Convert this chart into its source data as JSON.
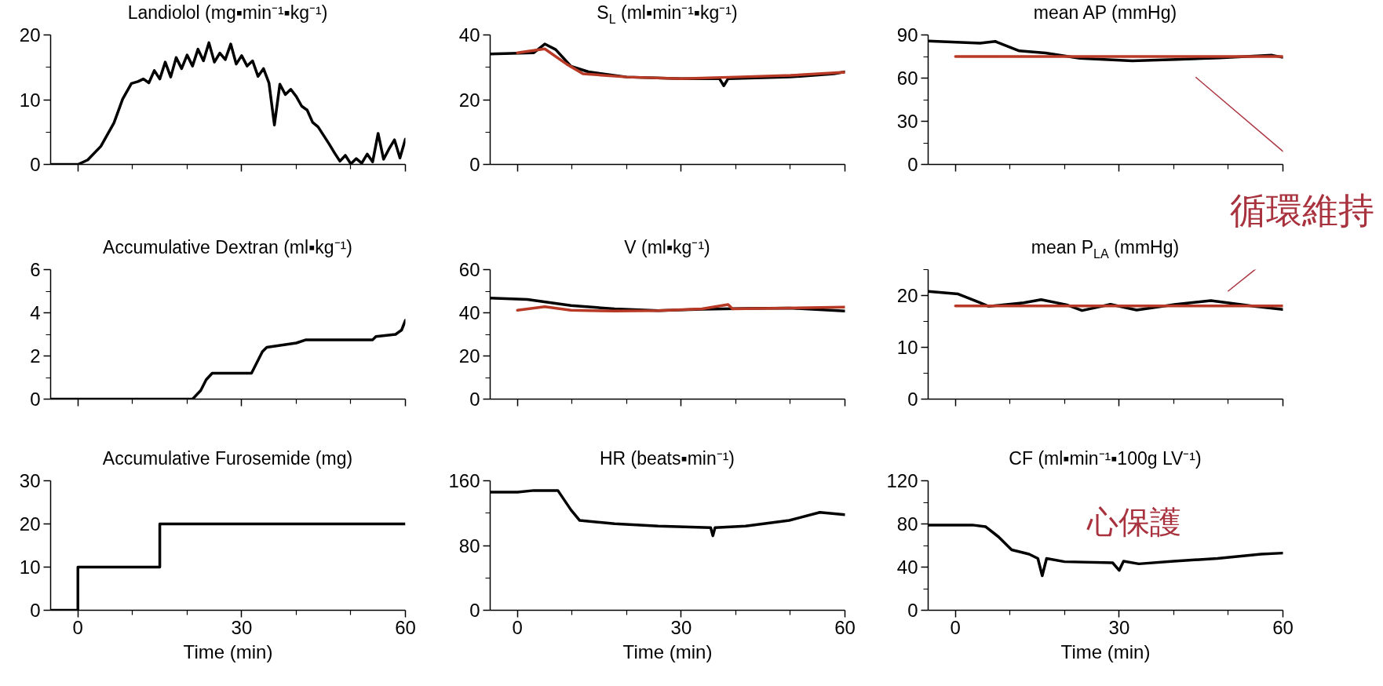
{
  "chart_data": [
    {
      "type": "line",
      "title": "Landiolol (mg▪min⁻¹▪kg⁻¹)",
      "xlim": [
        -5,
        60
      ],
      "xticks": [
        0,
        {
          "value": 10,
          "label": null
        },
        {
          "value": 20,
          "label": null
        },
        30,
        {
          "value": 40,
          "label": null
        },
        {
          "value": 50,
          "label": null
        },
        60
      ],
      "ylim": [
        0,
        20
      ],
      "yticks": [
        0,
        {
          "value": 5,
          "label": null
        },
        10,
        {
          "value": 15,
          "label": null
        },
        20
      ],
      "tick_labels": "y",
      "series": [
        {
          "color": "#000000",
          "x": [
            -5,
            0,
            1.8,
            4.2,
            6.6,
            8.2,
            9.8,
            11,
            12,
            13,
            14,
            15,
            16,
            17,
            18,
            19,
            20,
            21,
            22,
            23,
            24,
            25,
            26,
            27,
            28,
            29,
            30,
            31,
            32,
            33,
            34,
            35,
            36,
            37,
            38,
            39,
            40,
            41,
            42,
            43,
            44,
            45,
            46,
            47,
            48,
            49,
            50,
            51,
            52,
            53,
            54,
            55,
            56,
            57,
            58,
            59,
            60
          ],
          "values": [
            0,
            0,
            0.7,
            2.8,
            6.4,
            10.1,
            12.5,
            12.8,
            13.2,
            12.6,
            14.5,
            13.2,
            15.8,
            13.5,
            16.5,
            14.8,
            16.9,
            15.2,
            17.8,
            16.0,
            18.8,
            15.8,
            17.2,
            16.2,
            18.6,
            15.5,
            16.8,
            15.2,
            16.0,
            13.6,
            14.8,
            12.6,
            6.1,
            12.4,
            10.8,
            11.6,
            10.5,
            9.0,
            8.4,
            6.5,
            5.8,
            4.5,
            3.2,
            1.8,
            0.5,
            1.4,
            0.1,
            0.9,
            0.2,
            1.6,
            0.4,
            4.8,
            0.8,
            2.4,
            3.8,
            1.0,
            3.9
          ]
        }
      ]
    },
    {
      "type": "line",
      "title": "S$_{L}$ (ml▪min⁻¹▪kg⁻¹)",
      "xlim": [
        -5,
        60
      ],
      "xticks": [
        0,
        {
          "value": 10,
          "label": null
        },
        {
          "value": 20,
          "label": null
        },
        30,
        {
          "value": 40,
          "label": null
        },
        {
          "value": 50,
          "label": null
        },
        60
      ],
      "ylim": [
        0,
        40
      ],
      "yticks": [
        0,
        {
          "value": 10,
          "label": null
        },
        20,
        {
          "value": 30,
          "label": null
        },
        40
      ],
      "tick_labels": "y",
      "series": [
        {
          "color": "#000000",
          "x": [
            -5,
            3,
            5,
            7,
            9.8,
            13,
            20,
            30,
            37,
            37.8,
            38.6,
            45,
            50,
            58,
            60
          ],
          "values": [
            34.1,
            34.5,
            37.2,
            35.5,
            30.3,
            28.6,
            27,
            26.5,
            26.5,
            24.3,
            26.5,
            26.8,
            27,
            28,
            28.6
          ]
        },
        {
          "color": "#b83a26",
          "x": [
            0,
            5,
            9,
            12,
            20,
            30,
            40,
            50,
            60
          ],
          "values": [
            34.5,
            35.7,
            31,
            28,
            27,
            26.5,
            27,
            27.5,
            28.5
          ]
        }
      ]
    },
    {
      "type": "line",
      "title": "mean AP (mmHg)",
      "xlim": [
        -5,
        60
      ],
      "xticks": [
        0,
        {
          "value": 10,
          "label": null
        },
        {
          "value": 20,
          "label": null
        },
        30,
        {
          "value": 40,
          "label": null
        },
        {
          "value": 50,
          "label": null
        },
        60
      ],
      "ylim": [
        0,
        90
      ],
      "yticks": [
        0,
        {
          "value": 15,
          "label": null
        },
        30,
        {
          "value": 45,
          "label": null
        },
        60,
        {
          "value": 75,
          "label": null
        },
        90
      ],
      "tick_labels": "y",
      "annotations": [
        "循環維持"
      ],
      "series": [
        {
          "color": "#000000",
          "x": [
            -5,
            4.5,
            7.3,
            11.7,
            16.5,
            22.8,
            32.4,
            40.4,
            48.4,
            58,
            60
          ],
          "values": [
            85.8,
            84.3,
            85.5,
            78.9,
            77.4,
            73.8,
            72,
            72.9,
            74.1,
            75.9,
            74.4
          ]
        },
        {
          "color": "#b83a26",
          "x": [
            0,
            60
          ],
          "values": [
            75,
            75
          ]
        }
      ]
    },
    {
      "type": "line",
      "title": "Accumulative Dextran (ml▪kg⁻¹)",
      "xlim": [
        -5,
        60
      ],
      "xticks": [
        0,
        {
          "value": 10,
          "label": null
        },
        {
          "value": 20,
          "label": null
        },
        30,
        {
          "value": 40,
          "label": null
        },
        {
          "value": 50,
          "label": null
        },
        60
      ],
      "ylim": [
        0,
        6
      ],
      "yticks": [
        0,
        {
          "value": 1,
          "label": null
        },
        2,
        {
          "value": 3,
          "label": null
        },
        4,
        {
          "value": 5,
          "label": null
        },
        6
      ],
      "tick_labels": "y",
      "series": [
        {
          "color": "#000000",
          "x": [
            -5,
            21,
            22.5,
            23.5,
            24.6,
            31.8,
            33,
            33.8,
            34.6,
            40,
            41.8,
            54,
            54.6,
            58.2,
            59.3,
            60
          ],
          "values": [
            0,
            0,
            0.4,
            0.9,
            1.2,
            1.2,
            1.8,
            2.2,
            2.4,
            2.6,
            2.75,
            2.75,
            2.9,
            3.0,
            3.2,
            3.65
          ]
        }
      ]
    },
    {
      "type": "line",
      "title": "V (ml▪kg⁻¹)",
      "xlim": [
        -5,
        60
      ],
      "xticks": [
        0,
        {
          "value": 10,
          "label": null
        },
        {
          "value": 20,
          "label": null
        },
        30,
        {
          "value": 40,
          "label": null
        },
        {
          "value": 50,
          "label": null
        },
        60
      ],
      "ylim": [
        0,
        60
      ],
      "yticks": [
        0,
        {
          "value": 10,
          "label": null
        },
        20,
        {
          "value": 30,
          "label": null
        },
        40,
        {
          "value": 50,
          "label": null
        },
        60
      ],
      "tick_labels": "y",
      "series": [
        {
          "color": "#000000",
          "x": [
            -5,
            1.8,
            9.8,
            17.8,
            25.8,
            33.8,
            41.8,
            49.8,
            60
          ],
          "values": [
            46.8,
            46.2,
            43.4,
            41.8,
            41,
            41.6,
            42,
            42.2,
            40.8
          ]
        },
        {
          "color": "#b83a26",
          "x": [
            0,
            5,
            9.8,
            17.8,
            25.8,
            33.8,
            38.6,
            39.4,
            49.8,
            60
          ],
          "values": [
            41.2,
            42.8,
            41.2,
            40.8,
            41,
            41.8,
            43.8,
            41.8,
            42.2,
            42.6
          ]
        }
      ]
    },
    {
      "type": "line",
      "title": "mean P$_{LA}$ (mmHg)",
      "xlim": [
        -5,
        60
      ],
      "xticks": [
        0,
        {
          "value": 10,
          "label": null
        },
        {
          "value": 20,
          "label": null
        },
        30,
        {
          "value": 40,
          "label": null
        },
        {
          "value": 50,
          "label": null
        },
        60
      ],
      "ylim": [
        0,
        25
      ],
      "yticks": [
        0,
        {
          "value": 5,
          "label": null
        },
        10,
        {
          "value": 15,
          "label": null
        },
        20,
        {
          "value": 25,
          "label": null
        }
      ],
      "tick_labels": "y",
      "series": [
        {
          "color": "#000000",
          "x": [
            -5,
            0.5,
            4.5,
            6.1,
            12.5,
            15.7,
            20.4,
            23.2,
            28.4,
            33.2,
            40.4,
            46.8,
            54.8,
            60
          ],
          "values": [
            20.8,
            20.3,
            18.6,
            17.9,
            18.6,
            19.2,
            18.2,
            17.1,
            18.3,
            17.2,
            18.3,
            19,
            17.9,
            17.3
          ]
        },
        {
          "color": "#b83a26",
          "x": [
            0,
            60
          ],
          "values": [
            18,
            18
          ]
        }
      ]
    },
    {
      "type": "step",
      "title": "Accumulative Furosemide (mg)",
      "xlabel": "Time (min)",
      "xlim": [
        -5,
        60
      ],
      "xticks": [
        0,
        {
          "value": 10,
          "label": null
        },
        {
          "value": 20,
          "label": null
        },
        30,
        {
          "value": 40,
          "label": null
        },
        {
          "value": 50,
          "label": null
        },
        60
      ],
      "ylim": [
        0,
        30
      ],
      "yticks": [
        0,
        10,
        20,
        30
      ],
      "series": [
        {
          "color": "#000000",
          "x": [
            -5,
            0,
            15,
            60
          ],
          "values": [
            0,
            10,
            20,
            20
          ]
        }
      ]
    },
    {
      "type": "line",
      "title": "HR (beats▪min⁻¹)",
      "xlabel": "Time (min)",
      "xlim": [
        -5,
        60
      ],
      "xticks": [
        0,
        {
          "value": 10,
          "label": null
        },
        {
          "value": 20,
          "label": null
        },
        30,
        {
          "value": 40,
          "label": null
        },
        {
          "value": 50,
          "label": null
        },
        60
      ],
      "ylim": [
        0,
        160
      ],
      "yticks": [
        0,
        {
          "value": 40,
          "label": null
        },
        80,
        {
          "value": 120,
          "label": null
        },
        160
      ],
      "series": [
        {
          "color": "#000000",
          "x": [
            -5,
            0,
            3,
            7.4,
            9.8,
            11.4,
            17.8,
            25.8,
            35.4,
            35.8,
            36.2,
            41.8,
            49.8,
            55.4,
            60
          ],
          "values": [
            146,
            146,
            148,
            148,
            124,
            111,
            107,
            104,
            102,
            92,
            102,
            104,
            111,
            121,
            118
          ]
        }
      ]
    },
    {
      "type": "line",
      "title": "CF (ml▪min⁻¹▪100g LV⁻¹)",
      "xlabel": "Time (min)",
      "xlim": [
        -5,
        60
      ],
      "xticks": [
        0,
        {
          "value": 10,
          "label": null
        },
        {
          "value": 20,
          "label": null
        },
        30,
        {
          "value": 40,
          "label": null
        },
        {
          "value": 50,
          "label": null
        },
        60
      ],
      "ylim": [
        0,
        120
      ],
      "yticks": [
        0,
        {
          "value": 20,
          "label": null
        },
        40,
        {
          "value": 60,
          "label": null
        },
        80,
        {
          "value": 100,
          "label": null
        },
        120
      ],
      "annotations": [
        "心保護"
      ],
      "series": [
        {
          "color": "#000000",
          "x": [
            -5,
            3.1,
            5.5,
            7.9,
            10.3,
            13.5,
            15.1,
            15.9,
            16.7,
            20,
            28.8,
            30,
            30.8,
            33.6,
            40,
            48,
            56,
            60
          ],
          "values": [
            79,
            79,
            77.5,
            68,
            56,
            52,
            48,
            32,
            48,
            45,
            44,
            37,
            45.4,
            43,
            45.4,
            48,
            52,
            53
          ]
        }
      ]
    }
  ]
}
